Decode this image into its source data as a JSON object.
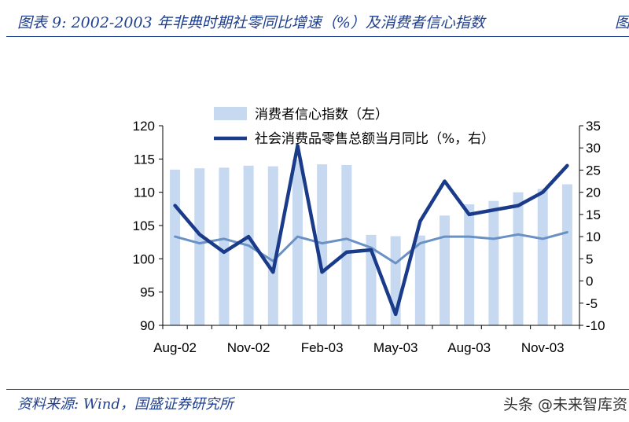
{
  "header": {
    "title": "图表 9:  2002-2003 年非典时期社零同比增速（%）及消费者信心指数",
    "title_right": "图"
  },
  "footer": {
    "source": "资料来源:  Wind，国盛证券研究所",
    "watermark": "头条 @未来智库资"
  },
  "colors": {
    "bar": "#c6d9f1",
    "line_dark": "#1a3a8a",
    "line_light": "#6a91c4",
    "brand": "#1f3f8f"
  },
  "chart_data": {
    "type": "bar+line",
    "legend_placement": "top",
    "grid": false,
    "left_axis": {
      "ylim": [
        90,
        120
      ],
      "ticks": [
        "120",
        "115",
        "110",
        "105",
        "100",
        "95",
        "90"
      ]
    },
    "right_axis": {
      "ylim": [
        -10,
        35
      ],
      "ticks": [
        "35",
        "30",
        "25",
        "20",
        "15",
        "10",
        "5",
        "0",
        "-5",
        "-10"
      ]
    },
    "x_tick_labels": [
      "Aug-02",
      "Nov-02",
      "Feb-03",
      "May-03",
      "Aug-03",
      "Nov-03"
    ],
    "x": [
      "2002-08",
      "2002-09",
      "2002-10",
      "2002-11",
      "2002-12",
      "2003-01",
      "2003-02",
      "2003-03",
      "2003-04",
      "2003-05",
      "2003-06",
      "2003-07",
      "2003-08",
      "2003-09",
      "2003-10",
      "2003-11",
      "2003-12"
    ],
    "series": [
      {
        "name": "消费者信心指数（左）",
        "type": "bar",
        "axis": "left",
        "values": [
          113.4,
          113.6,
          113.7,
          114.0,
          113.9,
          114.9,
          114.2,
          114.1,
          103.6,
          103.4,
          103.5,
          106.5,
          108.2,
          108.7,
          110.0,
          110.5,
          111.2
        ]
      },
      {
        "name": "社会消费品零售总额当月同比（%，右）",
        "type": "line",
        "axis": "right",
        "values": [
          17.0,
          10.5,
          6.5,
          10.0,
          2.0,
          30.5,
          2.0,
          6.5,
          7.0,
          -7.5,
          13.5,
          22.5,
          15.0,
          16.0,
          17.0,
          20.0,
          26.0
        ]
      },
      {
        "type": "line",
        "axis": "right",
        "values": [
          10.0,
          8.5,
          9.5,
          8.0,
          4.5,
          10.0,
          8.5,
          9.5,
          7.5,
          4.0,
          8.5,
          10.0,
          10.0,
          9.5,
          10.5,
          9.5,
          11.0
        ]
      }
    ]
  }
}
